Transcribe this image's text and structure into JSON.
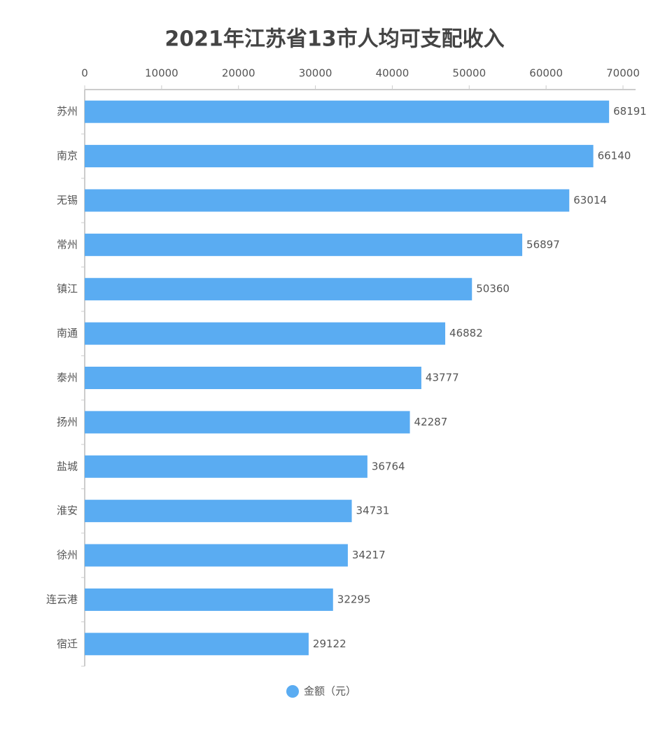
{
  "chart_data": {
    "type": "bar",
    "orientation": "horizontal",
    "title": "2021年江苏省13市人均可支配收入",
    "categories": [
      "苏州",
      "南京",
      "无锡",
      "常州",
      "镇江",
      "南通",
      "泰州",
      "扬州",
      "盐城",
      "淮安",
      "徐州",
      "连云港",
      "宿迁"
    ],
    "series": [
      {
        "name": "金额（元）",
        "color": "#5aacf2",
        "values": [
          68191,
          66140,
          63014,
          56897,
          50360,
          46882,
          43777,
          42287,
          36764,
          34731,
          34217,
          32295,
          29122
        ]
      }
    ],
    "xlim": [
      0,
      70000
    ],
    "xticks": [
      0,
      10000,
      20000,
      30000,
      40000,
      50000,
      60000,
      70000
    ],
    "legend": "bottom"
  }
}
